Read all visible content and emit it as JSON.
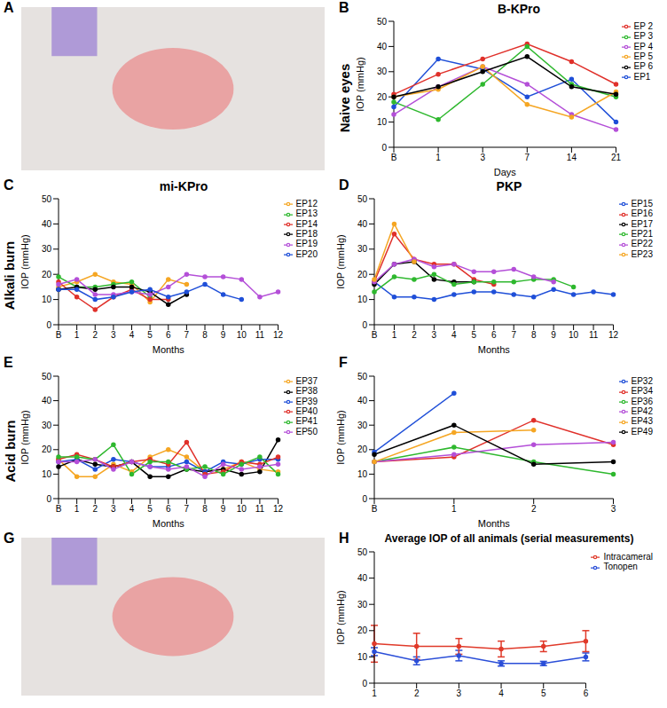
{
  "photo_panels": [
    "A",
    "G"
  ],
  "chart_data": [
    {
      "panel": "B",
      "row_label": "Naive eyes",
      "type": "line",
      "title": "B-KPro",
      "x_label": "Days",
      "y_label": "IOP (mmHg)",
      "categories": [
        "B",
        "1",
        "3",
        "7",
        "14",
        "21"
      ],
      "series": [
        {
          "name": "EP1",
          "color": "#1f4fd8",
          "values": [
            16,
            35,
            31,
            20,
            27,
            10
          ]
        },
        {
          "name": "EP 2",
          "color": "#e0302a",
          "values": [
            21,
            29,
            35,
            41,
            34,
            25
          ]
        },
        {
          "name": "EP 3",
          "color": "#2eb82e",
          "values": [
            18,
            11,
            25,
            40,
            25,
            20
          ]
        },
        {
          "name": "EP 4",
          "color": "#b44fd8",
          "values": [
            13,
            24,
            32,
            25,
            13,
            7
          ]
        },
        {
          "name": "EP 5",
          "color": "#f5a623",
          "values": [
            20,
            23,
            32,
            17,
            12,
            22
          ]
        },
        {
          "name": "EP 6",
          "color": "#000000",
          "values": [
            20,
            24,
            30,
            36,
            24,
            21
          ]
        }
      ],
      "ylim": [
        0,
        50
      ],
      "yticks": [
        0,
        10,
        20,
        30,
        40,
        50
      ],
      "grid": false,
      "legend": "right",
      "marker": "circle"
    },
    {
      "panel": "C",
      "row_label": "Alkali burn",
      "type": "line",
      "title": "mi-KPro",
      "x_label": "Months",
      "y_label": "IOP (mmHg)",
      "categories": [
        "B",
        "1",
        "2",
        "3",
        "4",
        "5",
        "6",
        "7",
        "8",
        "9",
        "10",
        "11",
        "12"
      ],
      "series": [
        {
          "name": "EP12",
          "color": "#f5a623",
          "values": [
            15,
            17,
            20,
            17,
            16,
            9,
            18,
            16,
            null,
            null,
            null,
            null,
            null
          ]
        },
        {
          "name": "EP13",
          "color": "#2eb82e",
          "values": [
            19,
            15,
            15,
            16,
            17,
            11,
            null,
            null,
            null,
            null,
            null,
            null,
            null
          ]
        },
        {
          "name": "EP14",
          "color": "#e0302a",
          "values": [
            17,
            11,
            6,
            11,
            14,
            10,
            10,
            null,
            null,
            null,
            null,
            null,
            null
          ]
        },
        {
          "name": "EP18",
          "color": "#000000",
          "values": [
            14,
            15,
            14,
            15,
            15,
            13,
            8,
            12,
            null,
            null,
            null,
            null,
            null
          ]
        },
        {
          "name": "EP19",
          "color": "#b44fd8",
          "values": [
            16,
            18,
            12,
            12,
            13,
            12,
            15,
            20,
            19,
            19,
            18,
            11,
            13
          ]
        },
        {
          "name": "EP20",
          "color": "#1f4fd8",
          "values": [
            14,
            14,
            10,
            11,
            13,
            14,
            11,
            13,
            16,
            12,
            10,
            null,
            null
          ]
        }
      ],
      "ylim": [
        0,
        50
      ],
      "yticks": [
        0,
        10,
        20,
        30,
        40,
        50
      ],
      "grid": false,
      "legend": "right",
      "marker": "circle"
    },
    {
      "panel": "D",
      "type": "line",
      "title": "PKP",
      "x_label": "Months",
      "y_label": "IOP (mmHg)",
      "categories": [
        "B",
        "1",
        "2",
        "3",
        "4",
        "5",
        "6",
        "7",
        "8",
        "9",
        "10",
        "11",
        "12"
      ],
      "series": [
        {
          "name": "EP15",
          "color": "#1f4fd8",
          "values": [
            17,
            11,
            11,
            10,
            12,
            13,
            13,
            12,
            11,
            14,
            12,
            13,
            12
          ]
        },
        {
          "name": "EP16",
          "color": "#e0302a",
          "values": [
            17,
            36,
            26,
            24,
            24,
            18,
            16,
            null,
            null,
            null,
            null,
            null,
            null
          ]
        },
        {
          "name": "EP17",
          "color": "#000000",
          "values": [
            16,
            24,
            25,
            18,
            17,
            17,
            null,
            null,
            null,
            null,
            null,
            null,
            null
          ]
        },
        {
          "name": "EP21",
          "color": "#2eb82e",
          "values": [
            13,
            19,
            18,
            20,
            16,
            17,
            17,
            17,
            18,
            18,
            15,
            null,
            null
          ]
        },
        {
          "name": "EP22",
          "color": "#b44fd8",
          "values": [
            17,
            24,
            26,
            23,
            24,
            21,
            21,
            22,
            19,
            17,
            null,
            null,
            null
          ]
        },
        {
          "name": "EP23",
          "color": "#f5a623",
          "values": [
            18,
            40,
            25,
            null,
            null,
            null,
            null,
            null,
            null,
            null,
            null,
            null,
            null
          ]
        }
      ],
      "ylim": [
        0,
        50
      ],
      "yticks": [
        0,
        10,
        20,
        30,
        40,
        50
      ],
      "grid": false,
      "legend": "right",
      "marker": "circle"
    },
    {
      "panel": "E",
      "row_label": "Acid burn",
      "type": "line",
      "x_label": "Months",
      "y_label": "IOP (mmHg)",
      "categories": [
        "B",
        "1",
        "2",
        "3",
        "4",
        "5",
        "6",
        "7",
        "8",
        "9",
        "10",
        "11",
        "12"
      ],
      "series": [
        {
          "name": "EP37",
          "color": "#f5a623",
          "values": [
            16,
            9,
            9,
            14,
            11,
            17,
            20,
            17,
            11,
            12,
            15,
            12,
            11
          ]
        },
        {
          "name": "EP38",
          "color": "#000000",
          "values": [
            13,
            16,
            14,
            13,
            15,
            9,
            9,
            12,
            11,
            12,
            10,
            11,
            24
          ]
        },
        {
          "name": "EP39",
          "color": "#1f4fd8",
          "values": [
            15,
            16,
            12,
            16,
            15,
            13,
            13,
            15,
            11,
            15,
            14,
            16,
            16
          ]
        },
        {
          "name": "EP40",
          "color": "#e0302a",
          "values": [
            16,
            18,
            16,
            13,
            15,
            16,
            14,
            23,
            10,
            11,
            15,
            14,
            17
          ]
        },
        {
          "name": "EP41",
          "color": "#2eb82e",
          "values": [
            17,
            17,
            16,
            22,
            10,
            15,
            15,
            12,
            13,
            10,
            14,
            17,
            10
          ]
        },
        {
          "name": "EP50",
          "color": "#b44fd8",
          "values": [
            15,
            15,
            16,
            12,
            15,
            13,
            12,
            13,
            9,
            14,
            12,
            13,
            14
          ]
        }
      ],
      "ylim": [
        0,
        50
      ],
      "yticks": [
        0,
        10,
        20,
        30,
        40,
        50
      ],
      "grid": false,
      "legend": "right",
      "marker": "circle"
    },
    {
      "panel": "F",
      "type": "line",
      "x_label": "Months",
      "y_label": "IOP (mmHg)",
      "categories": [
        "B",
        "1",
        "2",
        "3"
      ],
      "series": [
        {
          "name": "EP32",
          "color": "#1f4fd8",
          "values": [
            19,
            43,
            null,
            null
          ]
        },
        {
          "name": "EP34",
          "color": "#e0302a",
          "values": [
            15,
            17,
            32,
            22
          ]
        },
        {
          "name": "EP36",
          "color": "#2eb82e",
          "values": [
            15,
            21,
            15,
            10
          ]
        },
        {
          "name": "EP42",
          "color": "#b44fd8",
          "values": [
            15,
            18,
            22,
            23
          ]
        },
        {
          "name": "EP43",
          "color": "#f5a623",
          "values": [
            15,
            27,
            28,
            null
          ]
        },
        {
          "name": "EP49",
          "color": "#000000",
          "values": [
            18,
            30,
            14,
            15
          ]
        }
      ],
      "ylim": [
        0,
        50
      ],
      "yticks": [
        0,
        10,
        20,
        30,
        40,
        50
      ],
      "grid": false,
      "legend": "right",
      "marker": "circle"
    },
    {
      "panel": "H",
      "type": "line",
      "title": "Average IOP of all animals (serial measurements)",
      "y_label": "IOP (mmHg)",
      "categories": [
        "1",
        "2",
        "3",
        "4",
        "5",
        "6"
      ],
      "series": [
        {
          "name": "Tonopen",
          "color": "#2a4ed8",
          "values": [
            12,
            8.5,
            10.5,
            7.5,
            7.5,
            10
          ],
          "errors": [
            1.5,
            1.5,
            2,
            1,
            0.8,
            1.5
          ]
        },
        {
          "name": "Intracameral",
          "color": "#e03a2a",
          "values": [
            15,
            14,
            14,
            13,
            14,
            16
          ],
          "errors": [
            7,
            5,
            3,
            3,
            2,
            4
          ]
        }
      ],
      "ylim": [
        0,
        50
      ],
      "yticks": [
        0,
        10,
        20,
        30,
        40,
        50
      ],
      "grid": false,
      "legend": "right",
      "marker": "circle"
    }
  ]
}
